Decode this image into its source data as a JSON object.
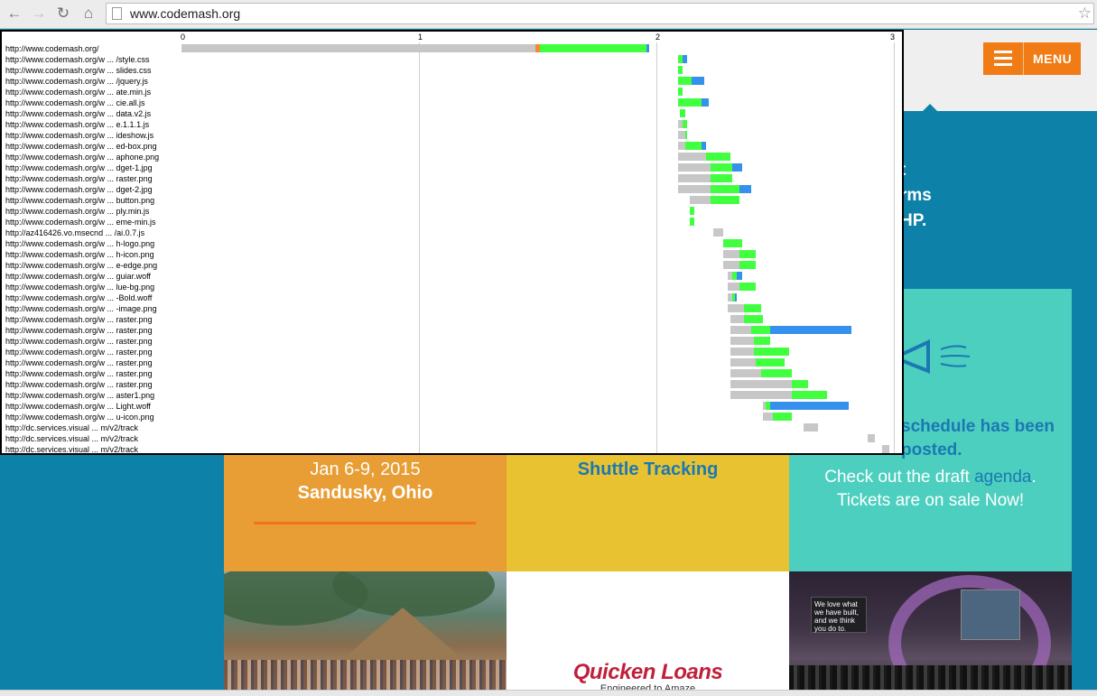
{
  "browser": {
    "url": "www.codemash.org",
    "back_icon": "arrow-left",
    "forward_icon": "arrow-right",
    "reload_icon": "reload",
    "home_icon": "home",
    "star_icon": "star"
  },
  "site": {
    "menu_label": "MENU",
    "hero_lines": [
      "t",
      "rms",
      "HP."
    ],
    "event_dates": "Jan 6-9, 2015",
    "event_location": "Sandusky, Ohio",
    "shuttle_text": "Shuttle Tracking",
    "schedule_head_1": "schedule has been",
    "schedule_head_2": "posted.",
    "draft_text_before": "Check out the draft ",
    "draft_link": "agenda",
    "draft_text_after": ".",
    "tickets_text": "Tickets are on sale Now!",
    "screen_quote": "We love what we have built, and we think you do to.",
    "sponsor_logo": "Quicken Loans",
    "sponsor_tagline": "Engineered to Amaze",
    "colors": {
      "site_blue": "#0d81a8",
      "menu_orange": "#f17c16",
      "panel_orange": "#e89d35",
      "panel_yellow": "#e8c230",
      "panel_teal": "#4ccfbf",
      "link_blue": "#1b78b3"
    }
  },
  "chart_data": {
    "type": "waterfall",
    "x_ticks": [
      "0",
      "1",
      "2",
      "3"
    ],
    "xlim": [
      0,
      3
    ],
    "colors": {
      "gray": "#c7c7c7",
      "orange": "#f08a3a",
      "green": "#3fff3f",
      "blue": "#3691ee"
    },
    "rows": [
      {
        "label": "http://www.codemash.org/",
        "segs": [
          [
            "gray",
            0.0,
            1.49
          ],
          [
            "orange",
            1.49,
            1.51
          ],
          [
            "green",
            1.51,
            1.96
          ],
          [
            "blue",
            1.96,
            1.97
          ]
        ]
      },
      {
        "label": "http://www.codemash.org/w ... /style.css",
        "segs": [
          [
            "green",
            2.09,
            2.11
          ],
          [
            "blue",
            2.11,
            2.13
          ]
        ]
      },
      {
        "label": "http://www.codemash.org/w ... slides.css",
        "segs": [
          [
            "green",
            2.09,
            2.11
          ]
        ]
      },
      {
        "label": "http://www.codemash.org/w ... /jquery.js",
        "segs": [
          [
            "green",
            2.09,
            2.15
          ],
          [
            "blue",
            2.15,
            2.2
          ]
        ]
      },
      {
        "label": "http://www.codemash.org/w ... ate.min.js",
        "segs": [
          [
            "green",
            2.09,
            2.11
          ]
        ]
      },
      {
        "label": "http://www.codemash.org/w ... cie.all.js",
        "segs": [
          [
            "green",
            2.09,
            2.19
          ],
          [
            "blue",
            2.19,
            2.22
          ]
        ]
      },
      {
        "label": "http://www.codemash.org/w ... data.v2.js",
        "segs": [
          [
            "green",
            2.1,
            2.12
          ]
        ]
      },
      {
        "label": "http://www.codemash.org/w ... e.1.1.1.js",
        "segs": [
          [
            "gray",
            2.09,
            2.11
          ],
          [
            "green",
            2.11,
            2.13
          ]
        ]
      },
      {
        "label": "http://www.codemash.org/w ... ideshow.js",
        "segs": [
          [
            "gray",
            2.09,
            2.12
          ],
          [
            "green",
            2.12,
            2.13
          ]
        ]
      },
      {
        "label": "http://www.codemash.org/w ... ed-box.png",
        "segs": [
          [
            "gray",
            2.09,
            2.12
          ],
          [
            "green",
            2.12,
            2.19
          ],
          [
            "blue",
            2.19,
            2.21
          ]
        ]
      },
      {
        "label": "http://www.codemash.org/w ... aphone.png",
        "segs": [
          [
            "gray",
            2.09,
            2.21
          ],
          [
            "green",
            2.21,
            2.31
          ]
        ]
      },
      {
        "label": "http://www.codemash.org/w ... dget-1.jpg",
        "segs": [
          [
            "gray",
            2.09,
            2.23
          ],
          [
            "green",
            2.23,
            2.32
          ],
          [
            "blue",
            2.32,
            2.36
          ]
        ]
      },
      {
        "label": "http://www.codemash.org/w ... raster.png",
        "segs": [
          [
            "gray",
            2.09,
            2.23
          ],
          [
            "green",
            2.23,
            2.32
          ]
        ]
      },
      {
        "label": "http://www.codemash.org/w ... dget-2.jpg",
        "segs": [
          [
            "gray",
            2.09,
            2.23
          ],
          [
            "green",
            2.23,
            2.35
          ],
          [
            "blue",
            2.35,
            2.4
          ]
        ]
      },
      {
        "label": "http://www.codemash.org/w ... button.png",
        "segs": [
          [
            "gray",
            2.14,
            2.23
          ],
          [
            "green",
            2.23,
            2.35
          ]
        ]
      },
      {
        "label": "http://www.codemash.org/w ... ply.min.js",
        "segs": [
          [
            "green",
            2.14,
            2.16
          ]
        ]
      },
      {
        "label": "http://www.codemash.org/w ... eme-min.js",
        "segs": [
          [
            "green",
            2.14,
            2.16
          ]
        ]
      },
      {
        "label": "http://az416426.vo.msecnd ... /ai.0.7.js",
        "segs": [
          [
            "gray",
            2.24,
            2.28
          ]
        ]
      },
      {
        "label": "http://www.codemash.org/w ... h-logo.png",
        "segs": [
          [
            "green",
            2.28,
            2.36
          ]
        ]
      },
      {
        "label": "http://www.codemash.org/w ... h-icon.png",
        "segs": [
          [
            "gray",
            2.28,
            2.35
          ],
          [
            "green",
            2.35,
            2.42
          ]
        ]
      },
      {
        "label": "http://www.codemash.org/w ... e-edge.png",
        "segs": [
          [
            "gray",
            2.28,
            2.35
          ],
          [
            "green",
            2.35,
            2.42
          ]
        ]
      },
      {
        "label": "http://www.codemash.org/w ... guiar.woff",
        "segs": [
          [
            "gray",
            2.3,
            2.32
          ],
          [
            "green",
            2.32,
            2.34
          ],
          [
            "blue",
            2.34,
            2.36
          ]
        ]
      },
      {
        "label": "http://www.codemash.org/w ... lue-bg.png",
        "segs": [
          [
            "gray",
            2.3,
            2.35
          ],
          [
            "green",
            2.35,
            2.42
          ]
        ]
      },
      {
        "label": "http://www.codemash.org/w ... -Bold.woff",
        "segs": [
          [
            "gray",
            2.3,
            2.32
          ],
          [
            "green",
            2.32,
            2.33
          ],
          [
            "blue",
            2.33,
            2.34
          ]
        ]
      },
      {
        "label": "http://www.codemash.org/w ... -image.png",
        "segs": [
          [
            "gray",
            2.3,
            2.37
          ],
          [
            "green",
            2.37,
            2.44
          ]
        ]
      },
      {
        "label": "http://www.codemash.org/w ... raster.png",
        "segs": [
          [
            "gray",
            2.31,
            2.37
          ],
          [
            "green",
            2.37,
            2.45
          ]
        ]
      },
      {
        "label": "http://www.codemash.org/w ... raster.png",
        "segs": [
          [
            "gray",
            2.31,
            2.4
          ],
          [
            "green",
            2.4,
            2.48
          ],
          [
            "blue",
            2.48,
            2.82
          ]
        ]
      },
      {
        "label": "http://www.codemash.org/w ... raster.png",
        "segs": [
          [
            "gray",
            2.31,
            2.41
          ],
          [
            "green",
            2.41,
            2.48
          ]
        ]
      },
      {
        "label": "http://www.codemash.org/w ... raster.png",
        "segs": [
          [
            "gray",
            2.31,
            2.41
          ],
          [
            "green",
            2.41,
            2.56
          ]
        ]
      },
      {
        "label": "http://www.codemash.org/w ... raster.png",
        "segs": [
          [
            "gray",
            2.31,
            2.42
          ],
          [
            "green",
            2.42,
            2.54
          ]
        ]
      },
      {
        "label": "http://www.codemash.org/w ... raster.png",
        "segs": [
          [
            "gray",
            2.31,
            2.44
          ],
          [
            "green",
            2.44,
            2.57
          ]
        ]
      },
      {
        "label": "http://www.codemash.org/w ... raster.png",
        "segs": [
          [
            "gray",
            2.31,
            2.57
          ],
          [
            "green",
            2.57,
            2.64
          ]
        ]
      },
      {
        "label": "http://www.codemash.org/w ... aster1.png",
        "segs": [
          [
            "gray",
            2.31,
            2.57
          ],
          [
            "green",
            2.57,
            2.72
          ]
        ]
      },
      {
        "label": "http://www.codemash.org/w ... Light.woff",
        "segs": [
          [
            "gray",
            2.45,
            2.46
          ],
          [
            "green",
            2.46,
            2.48
          ],
          [
            "blue",
            2.48,
            2.81
          ]
        ]
      },
      {
        "label": "http://www.codemash.org/w ... u-icon.png",
        "segs": [
          [
            "gray",
            2.45,
            2.49
          ],
          [
            "green",
            2.49,
            2.57
          ]
        ]
      },
      {
        "label": "http://dc.services.visual ... m/v2/track",
        "segs": [
          [
            "gray",
            2.62,
            2.68
          ]
        ]
      },
      {
        "label": "http://dc.services.visual ... m/v2/track",
        "segs": [
          [
            "gray",
            2.89,
            2.92
          ]
        ]
      },
      {
        "label": "http://dc.services.visual ... m/v2/track",
        "segs": [
          [
            "gray",
            2.95,
            2.98
          ]
        ]
      }
    ]
  }
}
